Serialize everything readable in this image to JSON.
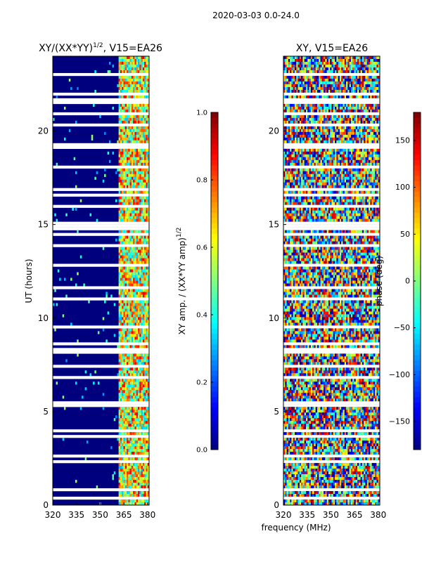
{
  "suptitle": "2020-03-03 0.0-24.0",
  "colors": {
    "nan_gap": "#ffffff",
    "low": "#00007f",
    "frame": "#000000",
    "sup_text": "#000000"
  },
  "chart_data": [
    {
      "type": "heatmap",
      "title_prefix": "XY/(XX*YY)",
      "title_exponent": "1/2",
      "title_suffix": ", V15=EA26",
      "xlabel": "",
      "ylabel": "UT (hours)",
      "xlim": [
        320,
        381
      ],
      "ylim": [
        0,
        24
      ],
      "xticks": [
        320,
        335,
        350,
        365,
        380
      ],
      "yticks": [
        0,
        5,
        10,
        15,
        20
      ],
      "grid": false,
      "colormap": "jet",
      "colorbar": {
        "label_prefix": "XY amp. / (XX*YY amp)",
        "label_exponent": "1/2",
        "range": [
          0.0,
          1.0
        ],
        "ticks": [
          0.0,
          0.2,
          0.4,
          0.6,
          0.8,
          1.0
        ],
        "tick_labels": [
          "0.0",
          "0.2",
          "0.4",
          "0.6",
          "0.8",
          "1.0"
        ]
      },
      "description_of_values": "Mostly ~0.0 below 362 MHz; values ~0.3-0.9 in 362-380 MHz band"
    },
    {
      "type": "heatmap",
      "title_prefix": "XY, V15=EA26",
      "title_exponent": "",
      "title_suffix": "",
      "xlabel": "frequency (MHz)",
      "ylabel": "",
      "xlim": [
        320,
        381
      ],
      "ylim": [
        0,
        24
      ],
      "xticks": [
        320,
        335,
        350,
        365,
        380
      ],
      "yticks": [
        0,
        5,
        10,
        15,
        20
      ],
      "grid": false,
      "colormap": "jet",
      "colorbar": {
        "label_prefix": "phase (deg)",
        "label_exponent": "",
        "range": [
          -180,
          180
        ],
        "ticks": [
          -150,
          -100,
          -50,
          0,
          50,
          100,
          150
        ],
        "tick_labels": [
          "−150",
          "−100",
          "−50",
          "0",
          "50",
          "100",
          "150"
        ]
      },
      "description_of_values": "Phase spread across -180..180 deg, noisy"
    }
  ]
}
